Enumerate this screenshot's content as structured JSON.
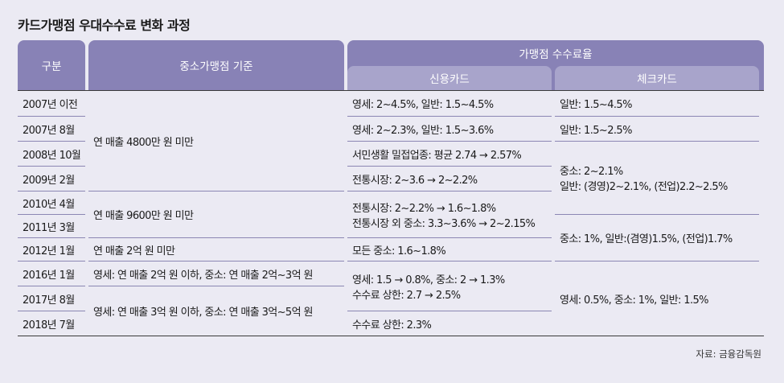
{
  "title": "카드가맹점 우대수수료 변화 과정",
  "headers": {
    "category": "구분",
    "criteria": "중소가맹점 기준",
    "fee_rate": "가맹점 수수료율",
    "credit": "신용카드",
    "check": "체크카드"
  },
  "periods": [
    "2007년 이전",
    "2007년 8월",
    "2008년 10월",
    "2009년 2월",
    "2010년 4월",
    "2011년 3월",
    "2012년 1월",
    "2016년 1월",
    "2017년 8월",
    "2018년 7월"
  ],
  "criteria": [
    "연 매출 4800만 원 미만",
    "연 매출 9600만 원 미만",
    "연 매출 2억 원 미만",
    "영세: 연 매출 2억 원 이하, 중소: 연 매출 2억~3억 원",
    "영세: 연 매출 3억 원 이하, 중소: 연 매출 3억~5억 원"
  ],
  "credit": [
    "영세: 2~4.5%, 일반: 1.5~4.5%",
    "영세: 2~2.3%, 일반: 1.5~3.6%",
    "서민생활 밀접업종: 평균 2.74 → 2.57%",
    "전통시장: 2~3.6 → 2~2.2%",
    [
      "전통시장: 2~2.2% → 1.6~1.8%",
      "전통시장 외 중소: 3.3~3.6% → 2~2.15%"
    ],
    "모든 중소: 1.6~1.8%",
    [
      "영세: 1.5 → 0.8%, 중소: 2 → 1.3%",
      "수수료 상한: 2.7 → 2.5%"
    ],
    "수수료 상한: 2.3%"
  ],
  "check": [
    "일반: 1.5~4.5%",
    "일반: 1.5~2.5%",
    [
      "중소: 2~2.1%",
      "일반: (경영)2~2.1%, (전업)2.2~2.5%"
    ],
    "중소: 1%, 일반:(겸영)1.5%, (전업)1.7%",
    "영세: 0.5%, 중소: 1%, 일반: 1.5%"
  ],
  "source": "자료: 금융감독원"
}
